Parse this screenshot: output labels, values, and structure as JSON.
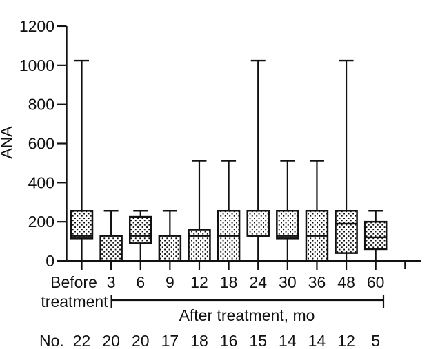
{
  "chart_data": {
    "type": "box",
    "title": "",
    "ylabel": "ANA",
    "xlabel": "",
    "group_label": "After treatment, mo",
    "counts_label": "No.",
    "ylim": [
      0,
      1200
    ],
    "yticks": [
      0,
      200,
      400,
      600,
      800,
      1000,
      1200
    ],
    "grid": false,
    "legend": "none",
    "categories": [
      "Before treatment",
      "3",
      "6",
      "9",
      "12",
      "18",
      "24",
      "30",
      "36",
      "48",
      "60"
    ],
    "before_label_lines": [
      "Before",
      "treatment"
    ],
    "counts": [
      22,
      20,
      20,
      17,
      18,
      16,
      15,
      14,
      14,
      12,
      5
    ],
    "boxes": [
      {
        "label": "Before treatment",
        "n": 22,
        "whisker_low": 0,
        "q1": 115,
        "median": 128,
        "q3": 256,
        "whisker_high": 1024
      },
      {
        "label": "3",
        "n": 20,
        "whisker_low": 0,
        "q1": 0,
        "median": null,
        "q3": 128,
        "whisker_high": 256
      },
      {
        "label": "6",
        "n": 20,
        "whisker_low": 0,
        "q1": 90,
        "median": 128,
        "q3": 225,
        "whisker_high": 256
      },
      {
        "label": "9",
        "n": 17,
        "whisker_low": 0,
        "q1": 0,
        "median": null,
        "q3": 128,
        "whisker_high": 256
      },
      {
        "label": "12",
        "n": 18,
        "whisker_low": 0,
        "q1": 0,
        "median": 128,
        "q3": 160,
        "whisker_high": 512
      },
      {
        "label": "18",
        "n": 16,
        "whisker_low": 0,
        "q1": 0,
        "median": 128,
        "q3": 256,
        "whisker_high": 512
      },
      {
        "label": "24",
        "n": 15,
        "whisker_low": 0,
        "q1": 128,
        "median": 128,
        "q3": 256,
        "whisker_high": 1024
      },
      {
        "label": "30",
        "n": 14,
        "whisker_low": 0,
        "q1": 115,
        "median": 128,
        "q3": 256,
        "whisker_high": 512
      },
      {
        "label": "36",
        "n": 14,
        "whisker_low": 0,
        "q1": 0,
        "median": 128,
        "q3": 256,
        "whisker_high": 512
      },
      {
        "label": "48",
        "n": 12,
        "whisker_low": 0,
        "q1": 40,
        "median": 190,
        "q3": 256,
        "whisker_high": 1024
      },
      {
        "label": "60",
        "n": 5,
        "whisker_low": 0,
        "q1": 60,
        "median": 120,
        "q3": 200,
        "whisker_high": 256
      }
    ],
    "has_extra_unlabeled_x_tick": true,
    "box_fill": "stipple-dots",
    "colors": {
      "stroke": "#111111",
      "background": "#ffffff"
    }
  }
}
